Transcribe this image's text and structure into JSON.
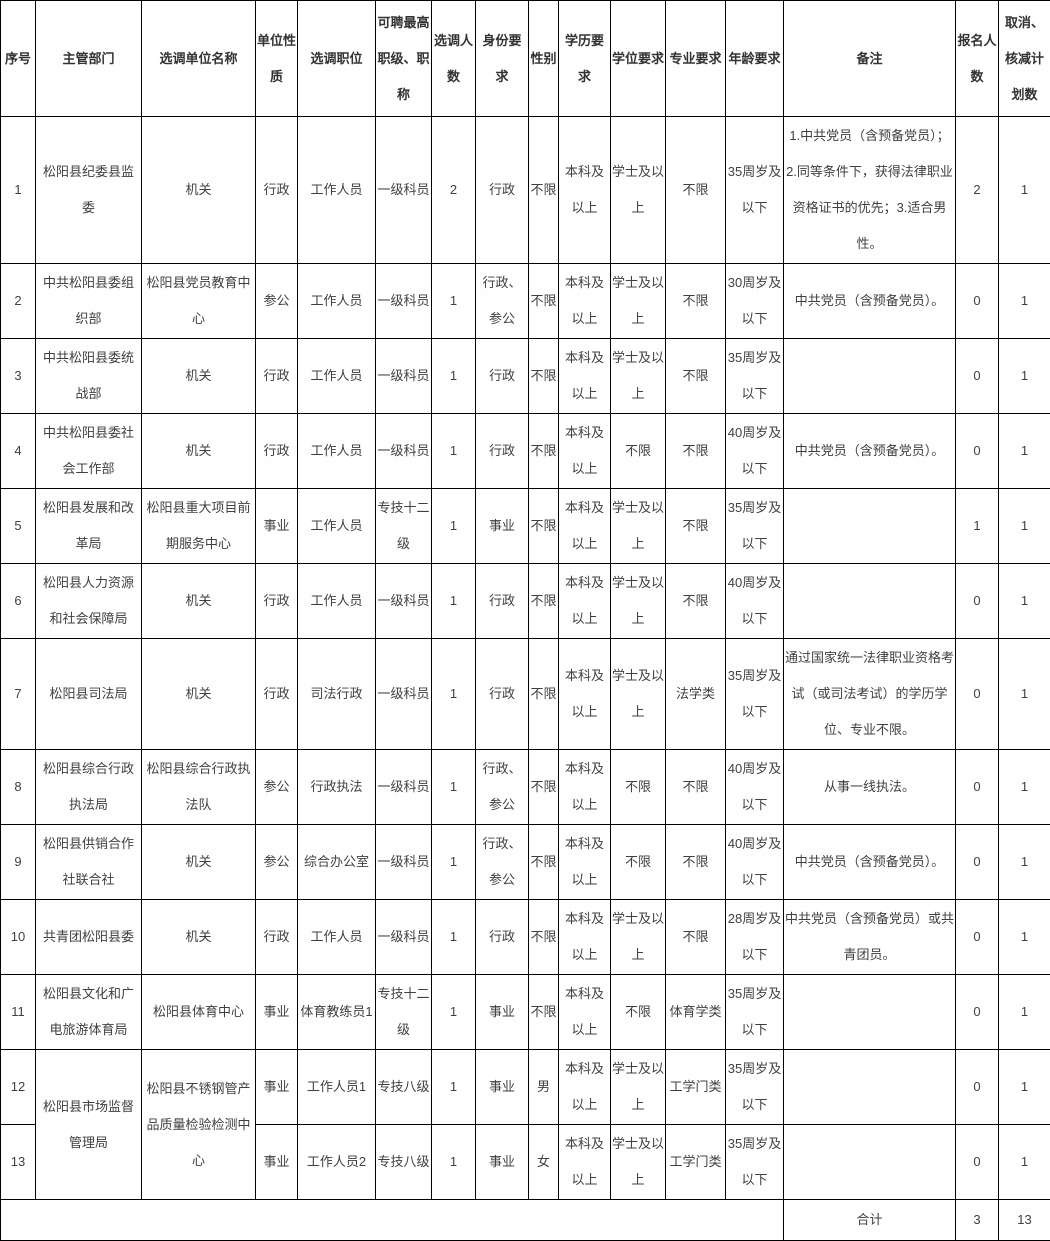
{
  "table": {
    "columns": [
      "序号",
      "主管部门",
      "选调单位名称",
      "单位性质",
      "选调职位",
      "可聘最高职级、职称",
      "选调人数",
      "身份要求",
      "性别",
      "学历要求",
      "学位要求",
      "专业要求",
      "年龄要求",
      "备注",
      "报名人数",
      "取消、核减计划数"
    ],
    "rows": [
      [
        "1",
        "松阳县纪委县监委",
        "机关",
        "行政",
        "工作人员",
        "一级科员",
        "2",
        "行政",
        "不限",
        "本科及以上",
        "学士及以上",
        "不限",
        "35周岁及以下",
        "1.中共党员（含预备党员）；2.同等条件下，获得法律职业资格证书的优先；3.适合男性。",
        "2",
        "1"
      ],
      [
        "2",
        "中共松阳县委组织部",
        "松阳县党员教育中心",
        "参公",
        "工作人员",
        "一级科员",
        "1",
        "行政、参公",
        "不限",
        "本科及以上",
        "学士及以上",
        "不限",
        "30周岁及以下",
        "中共党员（含预备党员）。",
        "0",
        "1"
      ],
      [
        "3",
        "中共松阳县委统战部",
        "机关",
        "行政",
        "工作人员",
        "一级科员",
        "1",
        "行政",
        "不限",
        "本科及以上",
        "学士及以上",
        "不限",
        "35周岁及以下",
        "",
        "0",
        "1"
      ],
      [
        "4",
        "中共松阳县委社会工作部",
        "机关",
        "行政",
        "工作人员",
        "一级科员",
        "1",
        "行政",
        "不限",
        "本科及以上",
        "不限",
        "不限",
        "40周岁及以下",
        "中共党员（含预备党员）。",
        "0",
        "1"
      ],
      [
        "5",
        "松阳县发展和改革局",
        "松阳县重大项目前期服务中心",
        "事业",
        "工作人员",
        "专技十二级",
        "1",
        "事业",
        "不限",
        "本科及以上",
        "学士及以上",
        "不限",
        "35周岁及以下",
        "",
        "1",
        "1"
      ],
      [
        "6",
        "松阳县人力资源和社会保障局",
        "机关",
        "行政",
        "工作人员",
        "一级科员",
        "1",
        "行政",
        "不限",
        "本科及以上",
        "学士及以上",
        "不限",
        "40周岁及以下",
        "",
        "0",
        "1"
      ],
      [
        "7",
        "松阳县司法局",
        "机关",
        "行政",
        "司法行政",
        "一级科员",
        "1",
        "行政",
        "不限",
        "本科及以上",
        "学士及以上",
        "法学类",
        "35周岁及以下",
        "通过国家统一法律职业资格考试（或司法考试）的学历学位、专业不限。",
        "0",
        "1"
      ],
      [
        "8",
        "松阳县综合行政执法局",
        "松阳县综合行政执法队",
        "参公",
        "行政执法",
        "一级科员",
        "1",
        "行政、参公",
        "不限",
        "本科及以上",
        "不限",
        "不限",
        "40周岁及以下",
        "从事一线执法。",
        "0",
        "1"
      ],
      [
        "9",
        "松阳县供销合作社联合社",
        "机关",
        "参公",
        "综合办公室",
        "一级科员",
        "1",
        "行政、参公",
        "不限",
        "本科及以上",
        "不限",
        "不限",
        "40周岁及以下",
        "中共党员（含预备党员）。",
        "0",
        "1"
      ],
      [
        "10",
        "共青团松阳县委",
        "机关",
        "行政",
        "工作人员",
        "一级科员",
        "1",
        "行政",
        "不限",
        "本科及以上",
        "学士及以上",
        "不限",
        "28周岁及以下",
        "中共党员（含预备党员）或共青团员。",
        "0",
        "1"
      ],
      [
        "11",
        "松阳县文化和广电旅游体育局",
        "松阳县体育中心",
        "事业",
        "体育教练员1",
        "专技十二级",
        "1",
        "事业",
        "不限",
        "本科及以上",
        "不限",
        "体育学类",
        "35周岁及以下",
        "",
        "0",
        "1"
      ],
      [
        "12",
        {
          "text": "松阳县市场监督管理局",
          "rowspan": 2
        },
        {
          "text": "松阳县不锈钢管产品质量检验检测中心",
          "rowspan": 2
        },
        "事业",
        "工作人员1",
        "专技八级",
        "1",
        "事业",
        "男",
        "本科及以上",
        "学士及以上",
        "工学门类",
        "35周岁及以下",
        "",
        "0",
        "1"
      ],
      [
        "13",
        null,
        null,
        "事业",
        "工作人员2",
        "专技八级",
        "1",
        "事业",
        "女",
        "本科及以上",
        "学士及以上",
        "工学门类",
        "35周岁及以下",
        "",
        "0",
        "1"
      ]
    ],
    "footer": {
      "label": "合计",
      "applicants_total": "3",
      "cancelled_total": "13"
    }
  }
}
